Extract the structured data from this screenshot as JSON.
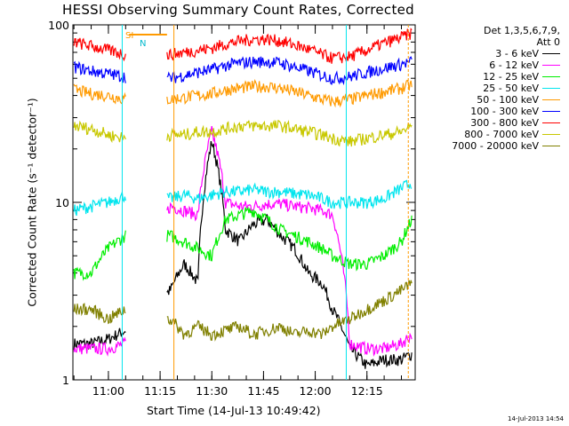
{
  "chart_data": {
    "type": "line",
    "title": "HESSI Observing Summary Count Rates, Corrected",
    "xlabel": "Start Time (14-Jul-13 10:49:42)",
    "ylabel": "Corrected Count Rate (s⁻¹ detector⁻¹)",
    "y_scale": "log",
    "ylim": [
      1,
      100
    ],
    "xlim": [
      "10:49:42",
      "12:29:00"
    ],
    "x_ticks": [
      "11:00",
      "11:15",
      "11:30",
      "11:45",
      "12:00",
      "12:15"
    ],
    "y_ticks": [
      "1",
      "10",
      "100"
    ],
    "legend_header": [
      "Det 1,3,5,6,7,9,",
      "Att 0"
    ],
    "legend_placement": "right",
    "attenuator_flags": [
      "SI",
      "N"
    ],
    "series": [
      {
        "name": "3 - 6 keV",
        "color": "#000000",
        "x": [
          "10:50",
          "10:55",
          "11:00",
          "11:05",
          "11:18",
          "11:22",
          "11:26",
          "11:30",
          "11:34",
          "11:38",
          "11:42",
          "11:46",
          "11:50",
          "11:54",
          "11:58",
          "12:02",
          "12:05",
          "12:10",
          "12:15",
          "12:20",
          "12:25",
          "12:28"
        ],
        "y": [
          1.6,
          1.6,
          1.7,
          1.9,
          3.2,
          4.5,
          3.5,
          22,
          7,
          6,
          7.5,
          8,
          6.5,
          5.5,
          4,
          3.5,
          2.5,
          1.5,
          1.2,
          1.3,
          1.3,
          1.4
        ]
      },
      {
        "name": "6 - 12 keV",
        "color": "#ff00ff",
        "x": [
          "10:50",
          "10:55",
          "11:00",
          "11:05",
          "11:18",
          "11:22",
          "11:26",
          "11:30",
          "11:34",
          "11:38",
          "11:42",
          "11:46",
          "11:50",
          "11:54",
          "11:58",
          "12:02",
          "12:05",
          "12:10",
          "12:15",
          "12:20",
          "12:25",
          "12:28"
        ],
        "y": [
          1.5,
          1.5,
          1.5,
          1.6,
          9.5,
          9,
          8.5,
          25,
          10,
          9.5,
          9.5,
          9.8,
          9.8,
          9.5,
          9.3,
          9,
          8.5,
          1.6,
          1.5,
          1.5,
          1.6,
          1.8
        ]
      },
      {
        "name": "12 - 25 keV",
        "color": "#00ee00",
        "x": [
          "10:50",
          "10:55",
          "11:00",
          "11:05",
          "11:18",
          "11:22",
          "11:26",
          "11:30",
          "11:34",
          "11:38",
          "11:42",
          "11:46",
          "11:50",
          "11:54",
          "11:58",
          "12:02",
          "12:05",
          "12:10",
          "12:15",
          "12:20",
          "12:25",
          "12:28"
        ],
        "y": [
          4,
          4,
          5.5,
          6.5,
          6.5,
          6,
          5.5,
          5,
          8,
          8.5,
          9,
          8,
          7,
          6.5,
          6,
          5.5,
          5,
          4.5,
          4.5,
          5,
          6,
          8
        ]
      },
      {
        "name": "25 - 50 keV",
        "color": "#00e5ee",
        "x": [
          "10:50",
          "10:55",
          "11:00",
          "11:05",
          "11:18",
          "11:22",
          "11:26",
          "11:30",
          "11:34",
          "11:38",
          "11:42",
          "11:46",
          "11:50",
          "11:54",
          "11:58",
          "12:02",
          "12:05",
          "12:10",
          "12:15",
          "12:20",
          "12:25",
          "12:28"
        ],
        "y": [
          9,
          9.5,
          10,
          11,
          10.5,
          11,
          10.5,
          11,
          11.5,
          11.5,
          11.8,
          11.5,
          11.5,
          11.2,
          11,
          10.5,
          10,
          10,
          10,
          10.5,
          12,
          13
        ]
      },
      {
        "name": "50 - 100 keV",
        "color": "#ff9a00",
        "x": [
          "10:50",
          "10:55",
          "11:00",
          "11:05",
          "11:18",
          "11:22",
          "11:26",
          "11:30",
          "11:34",
          "11:38",
          "11:42",
          "11:46",
          "11:50",
          "11:54",
          "11:58",
          "12:02",
          "12:05",
          "12:10",
          "12:15",
          "12:20",
          "12:25",
          "12:28"
        ],
        "y": [
          43,
          41,
          40,
          38,
          38,
          39,
          40,
          41,
          43,
          44,
          45,
          45,
          44,
          42,
          40,
          38,
          37,
          38,
          40,
          42,
          44,
          46
        ]
      },
      {
        "name": "100 - 300 keV",
        "color": "#0000ff",
        "x": [
          "10:50",
          "10:55",
          "11:00",
          "11:05",
          "11:18",
          "11:22",
          "11:26",
          "11:30",
          "11:34",
          "11:38",
          "11:42",
          "11:46",
          "11:50",
          "11:54",
          "11:58",
          "12:02",
          "12:05",
          "12:10",
          "12:15",
          "12:20",
          "12:25",
          "12:28"
        ],
        "y": [
          58,
          55,
          53,
          51,
          50,
          52,
          54,
          56,
          59,
          61,
          62,
          62,
          61,
          58,
          55,
          52,
          50,
          51,
          54,
          57,
          60,
          62
        ]
      },
      {
        "name": "300 - 800 keV",
        "color": "#ff0000",
        "x": [
          "10:50",
          "10:55",
          "11:00",
          "11:05",
          "11:18",
          "11:22",
          "11:26",
          "11:30",
          "11:34",
          "11:38",
          "11:42",
          "11:46",
          "11:50",
          "11:54",
          "11:58",
          "12:02",
          "12:05",
          "12:10",
          "12:15",
          "12:20",
          "12:25",
          "12:28"
        ],
        "y": [
          80,
          76,
          72,
          68,
          68,
          70,
          72,
          74,
          78,
          81,
          83,
          83,
          81,
          77,
          73,
          68,
          65,
          66,
          72,
          79,
          85,
          90
        ]
      },
      {
        "name": "800 - 7000 keV",
        "color": "#c8c800",
        "x": [
          "10:50",
          "10:55",
          "11:00",
          "11:05",
          "11:18",
          "11:22",
          "11:26",
          "11:30",
          "11:34",
          "11:38",
          "11:42",
          "11:46",
          "11:50",
          "11:54",
          "11:58",
          "12:02",
          "12:05",
          "12:10",
          "12:15",
          "12:20",
          "12:25",
          "12:28"
        ],
        "y": [
          27,
          26,
          24,
          23,
          24,
          24,
          25,
          25,
          26,
          27,
          27,
          27,
          27,
          26,
          25,
          24,
          23,
          22,
          23,
          24,
          25,
          27
        ]
      },
      {
        "name": "7000 - 20000 keV",
        "color": "#808000",
        "x": [
          "10:50",
          "10:55",
          "11:00",
          "11:05",
          "11:18",
          "11:22",
          "11:26",
          "11:30",
          "11:34",
          "11:38",
          "11:42",
          "11:46",
          "11:50",
          "11:54",
          "11:58",
          "12:02",
          "12:05",
          "12:10",
          "12:15",
          "12:20",
          "12:25",
          "12:28"
        ],
        "y": [
          2.5,
          2.5,
          2.2,
          2.5,
          2.2,
          1.8,
          2,
          1.8,
          1.9,
          2,
          1.8,
          1.9,
          2,
          1.8,
          1.9,
          1.8,
          2,
          2.2,
          2.5,
          2.8,
          3.2,
          3.5
        ]
      }
    ],
    "interval_markers": [
      "11:04",
      "11:19",
      "12:09",
      "12:27"
    ]
  },
  "timestamp": "14-Jul-2013 14:54"
}
